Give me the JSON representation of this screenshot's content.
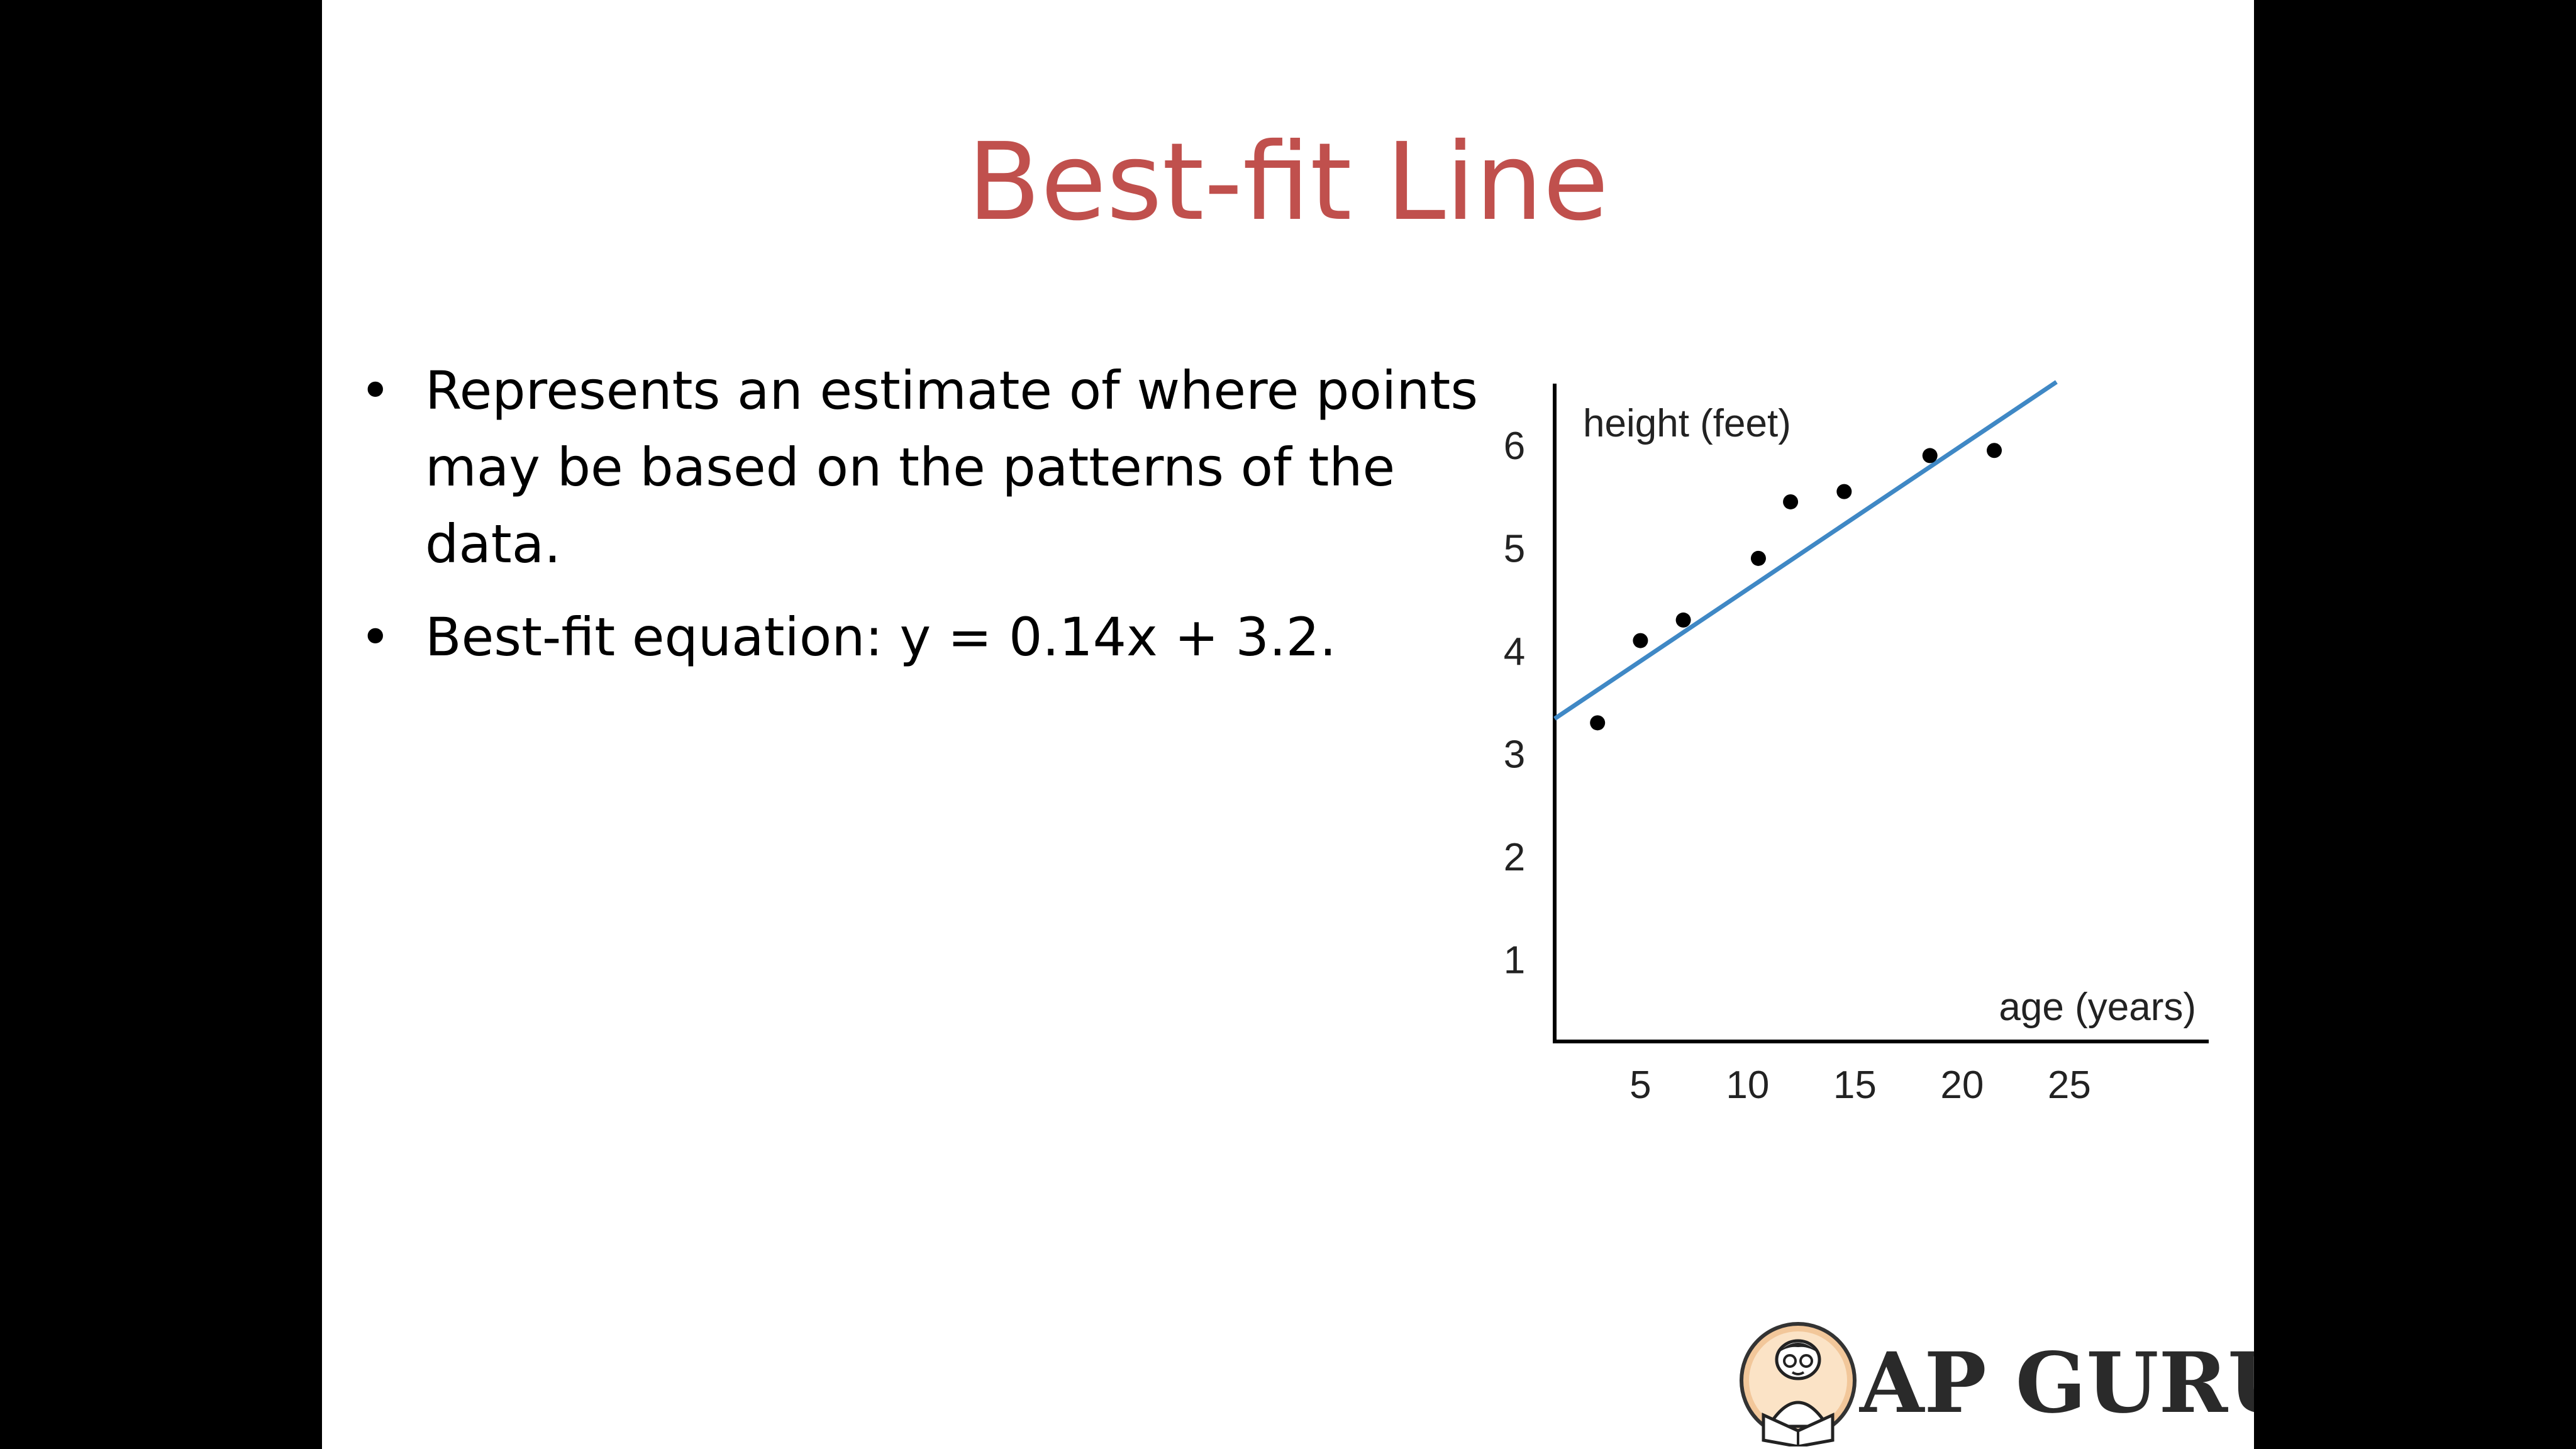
{
  "slide": {
    "title": "Best-fit Line",
    "bullets": [
      "Represents an estimate of where points may be based on the patterns of the data.",
      "Best-fit equation: y = 0.14x + 3.2."
    ]
  },
  "logo": {
    "text": "AP GURU",
    "icon": "reading-person-avatar-icon"
  },
  "colors": {
    "title": "#c0504d",
    "line": "#3f88c5",
    "points": "#000000"
  },
  "chart_data": {
    "type": "scatter",
    "xlabel": "age (years)",
    "ylabel": "height (feet)",
    "x_ticks": [
      5,
      10,
      15,
      20,
      25
    ],
    "y_ticks": [
      1,
      2,
      3,
      4,
      5,
      6
    ],
    "xlim": [
      1,
      31.5
    ],
    "ylim": [
      0.2,
      6.6
    ],
    "grid": false,
    "points": [
      {
        "x": 3,
        "y": 3.3
      },
      {
        "x": 5,
        "y": 4.1
      },
      {
        "x": 7,
        "y": 4.3
      },
      {
        "x": 10.5,
        "y": 4.9
      },
      {
        "x": 12,
        "y": 5.45
      },
      {
        "x": 14.5,
        "y": 5.55
      },
      {
        "x": 18.5,
        "y": 5.9
      },
      {
        "x": 21.5,
        "y": 5.95
      }
    ],
    "fit_line": {
      "slope": 0.14,
      "intercept": 3.2,
      "x_from": 1,
      "x_to": 24.4
    }
  }
}
